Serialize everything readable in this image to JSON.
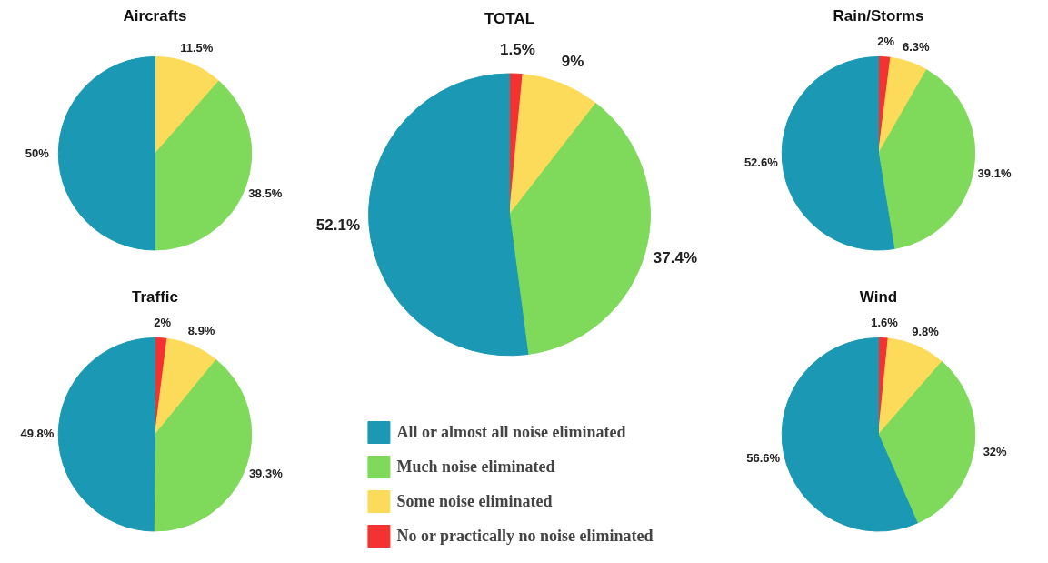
{
  "chart_data": [
    {
      "type": "pie",
      "title": "Aircrafts",
      "categories": [
        null,
        null,
        null
      ],
      "values": [
        11.5,
        38.5,
        50
      ],
      "colors": [
        "#fddb5a",
        "#7fd95b",
        "#1b98b3"
      ],
      "value_labels": [
        "11.5%",
        "38.5%",
        "50%"
      ],
      "legend": false
    },
    {
      "type": "pie",
      "title": "Traffic",
      "categories": [
        null,
        null,
        null,
        null
      ],
      "values": [
        2,
        8.9,
        39.3,
        49.8
      ],
      "colors": [
        "#f43232",
        "#fddb5a",
        "#7fd95b",
        "#1b98b3"
      ],
      "value_labels": [
        "2%",
        "8.9%",
        "39.3%",
        "49.8%"
      ],
      "legend": false
    },
    {
      "type": "pie",
      "title": "TOTAL",
      "categories": [
        "No or practically no noise eliminated",
        "Some noise eliminated",
        "Much noise eliminated",
        "All or almost all noise eliminated"
      ],
      "values": [
        1.5,
        9,
        37.4,
        52.1
      ],
      "colors": [
        "#f43232",
        "#fddb5a",
        "#7fd95b",
        "#1b98b3"
      ],
      "value_labels": [
        "1.5%",
        "9%",
        "37.4%",
        "52.1%"
      ],
      "legend": "bottom"
    },
    {
      "type": "pie",
      "title": "Rain/Storms",
      "categories": [
        null,
        null,
        null,
        null
      ],
      "values": [
        2,
        6.3,
        39.1,
        52.6
      ],
      "colors": [
        "#f43232",
        "#fddb5a",
        "#7fd95b",
        "#1b98b3"
      ],
      "value_labels": [
        "2%",
        "6.3%",
        "39.1%",
        "52.6%"
      ],
      "legend": false
    },
    {
      "type": "pie",
      "title": "Wind",
      "categories": [
        null,
        null,
        null,
        null
      ],
      "values": [
        1.6,
        9.8,
        32,
        56.6
      ],
      "colors": [
        "#f43232",
        "#fddb5a",
        "#7fd95b",
        "#1b98b3"
      ],
      "value_labels": [
        "1.6%",
        "9.8%",
        "32%",
        "56.6%"
      ],
      "legend": false
    }
  ]
}
